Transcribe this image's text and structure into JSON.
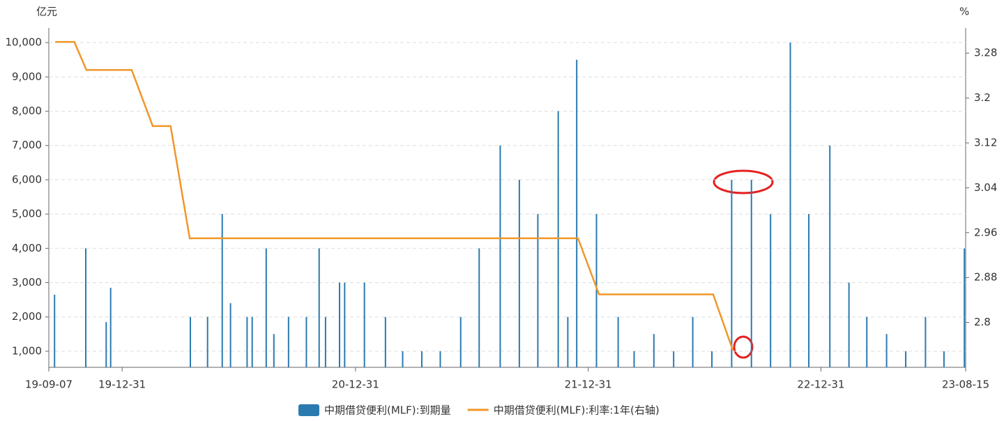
{
  "chart_data": {
    "type": "bar",
    "y_unit": "亿元",
    "y2_unit": "%",
    "xlim": [
      "19-09-07",
      "23-08-15"
    ],
    "xticks": [
      "19-09-07",
      "19-12-31",
      "20-12-31",
      "21-12-31",
      "22-12-31",
      "23-08-15"
    ],
    "ylim": [
      530,
      10430
    ],
    "yticks": [
      {
        "value": 1000,
        "label": "1,000"
      },
      {
        "value": 2000,
        "label": "2,000"
      },
      {
        "value": 3000,
        "label": "3,000"
      },
      {
        "value": 4000,
        "label": "4,000"
      },
      {
        "value": 5000,
        "label": "5,000"
      },
      {
        "value": 6000,
        "label": "6,000"
      },
      {
        "value": 7000,
        "label": "7,000"
      },
      {
        "value": 8000,
        "label": "8,000"
      },
      {
        "value": 9000,
        "label": "9,000"
      },
      {
        "value": 10000,
        "label": "10,000"
      }
    ],
    "y2lim": [
      2.72,
      3.325
    ],
    "y2ticks": [
      2.8,
      2.88,
      2.96,
      3.04,
      3.12,
      3.2,
      3.28
    ],
    "grid": true,
    "series": [
      {
        "name": "中期借贷便利(MLF):到期量",
        "type": "bar",
        "color": "#2a7ab0",
        "x": [
          "19-09-16",
          "19-11-04",
          "19-12-06",
          "19-12-13",
          "20-04-16",
          "20-05-13",
          "20-06-05",
          "20-06-18",
          "20-07-14",
          "20-07-22",
          "20-08-13",
          "20-08-25",
          "20-09-17",
          "20-10-15",
          "20-11-04",
          "20-11-14",
          "20-12-06",
          "20-12-14",
          "21-01-14",
          "21-02-16",
          "21-03-15",
          "21-04-14",
          "21-05-13",
          "21-06-14",
          "21-07-13",
          "21-08-15",
          "21-09-14",
          "21-10-13",
          "21-11-14",
          "21-11-29",
          "21-12-13",
          "22-01-13",
          "22-02-16",
          "22-03-13",
          "22-04-13",
          "22-05-14",
          "22-06-13",
          "22-07-13",
          "22-08-13",
          "22-09-13",
          "22-10-13",
          "22-11-13",
          "22-12-12",
          "23-01-14",
          "23-02-13",
          "23-03-13",
          "23-04-13",
          "23-05-13",
          "23-06-13",
          "23-07-12",
          "23-08-13"
        ],
        "values": [
          2650,
          4000,
          1850,
          2850,
          2000,
          2000,
          5000,
          2400,
          2000,
          2000,
          4000,
          1500,
          2000,
          2000,
          4000,
          2000,
          3000,
          3000,
          3000,
          2000,
          1000,
          1000,
          1000,
          2000,
          4000,
          7000,
          6000,
          5000,
          8000,
          2000,
          9500,
          5000,
          2000,
          1000,
          1500,
          1000,
          2000,
          1000,
          6000,
          6000,
          5000,
          10000,
          5000,
          7000,
          3000,
          2000,
          1500,
          1000,
          2000,
          1000,
          4000
        ]
      },
      {
        "name": "中期借贷便利(MLF):利率:1年(右轴)",
        "type": "line",
        "axis": "y2",
        "color": "#f0962a",
        "x": [
          "19-09-17",
          "19-10-17",
          "19-11-05",
          "20-01-15",
          "20-02-17",
          "20-03-16",
          "20-04-15",
          "21-12-15",
          "22-01-17",
          "22-07-15",
          "22-08-15"
        ],
        "values": [
          3.3,
          3.3,
          3.25,
          3.25,
          3.15,
          3.15,
          2.95,
          2.95,
          2.85,
          2.85,
          2.75
        ]
      }
    ]
  }
}
